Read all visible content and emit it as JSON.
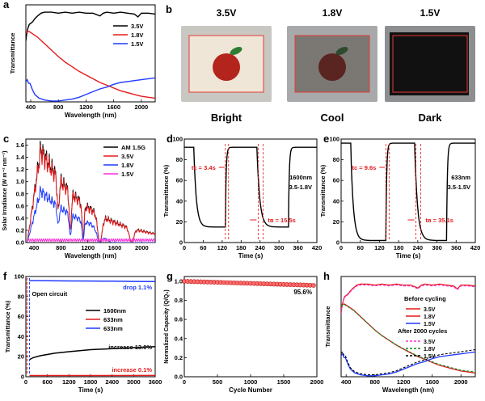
{
  "panels": {
    "a": {
      "letter": "a",
      "type": "line",
      "xlabel": "Wavelength (nm)",
      "ylabel": "Transmittance",
      "xlim": [
        330,
        2200
      ],
      "ylim": [
        0,
        1.05
      ],
      "xticks": [
        400,
        800,
        1200,
        1600,
        2000
      ],
      "series": [
        {
          "name": "3.5V",
          "color": "#000000",
          "points": [
            [
              330,
              0.66
            ],
            [
              340,
              0.73
            ],
            [
              360,
              0.8
            ],
            [
              380,
              0.84
            ],
            [
              400,
              0.85
            ],
            [
              430,
              0.87
            ],
            [
              460,
              0.9
            ],
            [
              500,
              0.93
            ],
            [
              550,
              0.96
            ],
            [
              600,
              0.97
            ],
            [
              700,
              0.97
            ],
            [
              800,
              0.96
            ],
            [
              900,
              0.97
            ],
            [
              1000,
              0.96
            ],
            [
              1100,
              0.97
            ],
            [
              1200,
              0.96
            ],
            [
              1300,
              0.96
            ],
            [
              1400,
              0.93
            ],
            [
              1450,
              0.96
            ],
            [
              1500,
              0.97
            ],
            [
              1600,
              0.96
            ],
            [
              1700,
              0.97
            ],
            [
              1800,
              0.96
            ],
            [
              1900,
              0.95
            ],
            [
              1950,
              0.92
            ],
            [
              2000,
              0.96
            ],
            [
              2100,
              0.96
            ],
            [
              2200,
              0.95
            ]
          ]
        },
        {
          "name": "1.8V",
          "color": "#e31a1c",
          "points": [
            [
              330,
              0.74
            ],
            [
              350,
              0.76
            ],
            [
              380,
              0.76
            ],
            [
              420,
              0.74
            ],
            [
              500,
              0.7
            ],
            [
              600,
              0.63
            ],
            [
              700,
              0.56
            ],
            [
              800,
              0.49
            ],
            [
              900,
              0.43
            ],
            [
              1000,
              0.38
            ],
            [
              1100,
              0.33
            ],
            [
              1200,
              0.29
            ],
            [
              1300,
              0.25
            ],
            [
              1400,
              0.21
            ],
            [
              1500,
              0.18
            ],
            [
              1600,
              0.15
            ],
            [
              1700,
              0.12
            ],
            [
              1800,
              0.1
            ],
            [
              1900,
              0.08
            ],
            [
              2000,
              0.06
            ],
            [
              2100,
              0.05
            ],
            [
              2200,
              0.04
            ]
          ]
        },
        {
          "name": "1.5V",
          "color": "#1f3bff",
          "points": [
            [
              330,
              0.22
            ],
            [
              350,
              0.24
            ],
            [
              370,
              0.2
            ],
            [
              390,
              0.2
            ],
            [
              420,
              0.14
            ],
            [
              460,
              0.08
            ],
            [
              520,
              0.04
            ],
            [
              600,
              0.02
            ],
            [
              700,
              0.01
            ],
            [
              800,
              0.01
            ],
            [
              900,
              0.02
            ],
            [
              1000,
              0.03
            ],
            [
              1100,
              0.05
            ],
            [
              1200,
              0.08
            ],
            [
              1300,
              0.11
            ],
            [
              1400,
              0.14
            ],
            [
              1500,
              0.16
            ],
            [
              1600,
              0.19
            ],
            [
              1700,
              0.21
            ],
            [
              1800,
              0.22
            ],
            [
              1900,
              0.23
            ],
            [
              2000,
              0.24
            ],
            [
              2100,
              0.25
            ],
            [
              2200,
              0.26
            ]
          ]
        }
      ]
    },
    "b": {
      "letter": "b",
      "states": [
        {
          "voltage": "3.5V",
          "caption": "Bright"
        },
        {
          "voltage": "1.8V",
          "caption": "Cool"
        },
        {
          "voltage": "1.5V",
          "caption": "Dark"
        }
      ]
    },
    "c": {
      "letter": "c",
      "type": "line",
      "xlabel": "Wavelength (nm)",
      "ylabel": "Solar Irradiance (W m⁻² nm⁻¹)",
      "xlim": [
        280,
        2200
      ],
      "ylim": [
        0,
        1.7
      ],
      "xticks": [
        400,
        800,
        1200,
        1600,
        2000
      ],
      "yticks": [
        0.0,
        0.2,
        0.4,
        0.6,
        0.8,
        1.0,
        1.2,
        1.4,
        1.6
      ],
      "series": [
        {
          "name": "AM 1.5G",
          "color": "#000000",
          "scale": 1.0
        },
        {
          "name": "3.5V",
          "color": "#e31a1c",
          "scale": 0.96
        },
        {
          "name": "1.8V",
          "color": "#1f3bff",
          "scale": 0.55
        },
        {
          "name": "1.5V",
          "color": "#ff2bd6",
          "scale": 0.06
        }
      ]
    },
    "d": {
      "letter": "d",
      "type": "line",
      "xlabel": "Time (s)",
      "ylabel": "Transmittance (%)",
      "xlim": [
        0,
        420
      ],
      "ylim": [
        0,
        100
      ],
      "xticks": [
        0,
        60,
        120,
        180,
        240,
        300,
        360,
        420
      ],
      "yticks": [
        0,
        20,
        40,
        60,
        80,
        100
      ],
      "top": 92,
      "bottom": 15,
      "times": [
        0,
        30,
        130,
        230,
        330,
        420
      ],
      "note_lines": [
        "1600nm",
        "3.5-1.8V"
      ],
      "t_color": "tᴄ = 3.4s",
      "t_bleach": "tʙ = 15.5s"
    },
    "e": {
      "letter": "e",
      "type": "line",
      "xlabel": "Time (s)",
      "ylabel": "Transmittance (%)",
      "xlim": [
        0,
        420
      ],
      "ylim": [
        0,
        100
      ],
      "xticks": [
        0,
        60,
        120,
        180,
        240,
        300,
        360,
        420
      ],
      "yticks": [
        0,
        20,
        40,
        60,
        80,
        100
      ],
      "top": 96,
      "bottom": 2,
      "times": [
        0,
        30,
        140,
        230,
        330,
        420
      ],
      "note_lines": [
        "633nm",
        "3.5-1.5V"
      ],
      "t_color": "tᴄ = 9.6s",
      "t_bleach": "tʙ = 35.1s"
    },
    "f": {
      "letter": "f",
      "type": "line",
      "xlabel": "Time (s)",
      "ylabel": "Transmittance (%)",
      "xlim": [
        0,
        3600
      ],
      "ylim": [
        0,
        100
      ],
      "xticks": [
        0,
        600,
        1200,
        1800,
        2400,
        3000,
        3600
      ],
      "yticks": [
        0,
        20,
        40,
        60,
        80,
        100
      ],
      "series": [
        {
          "name": "1600nm",
          "color": "#000000",
          "points": [
            [
              100,
              17
            ],
            [
              200,
              19
            ],
            [
              400,
              21
            ],
            [
              800,
              23.5
            ],
            [
              1200,
              25
            ],
            [
              1800,
              27
            ],
            [
              2400,
              28
            ],
            [
              3000,
              29
            ],
            [
              3600,
              30
            ]
          ]
        },
        {
          "name": "633nm",
          "color": "#e31a1c",
          "points": [
            [
              100,
              1.2
            ],
            [
              3600,
              1.3
            ]
          ]
        },
        {
          "name": "633nm",
          "color": "#1f3bff",
          "points": [
            [
              100,
              96
            ],
            [
              600,
              95.8
            ],
            [
              1200,
              95.6
            ],
            [
              1800,
              95.5
            ],
            [
              2400,
              95.3
            ],
            [
              3000,
              95.1
            ],
            [
              3600,
              95
            ]
          ]
        }
      ],
      "open_circuit": "Open circuit",
      "drop": "drop 1.1%",
      "increase_black": "increase 13.0%",
      "increase_red": "increase 0.1%"
    },
    "g": {
      "letter": "g",
      "type": "scatter",
      "xlabel": "Cycle Number",
      "ylabel": "Normalized Capacity (Q/Q₀)",
      "xlim": [
        0,
        2000
      ],
      "ylim": [
        0,
        1.05
      ],
      "xticks": [
        0,
        500,
        1000,
        1500,
        2000
      ],
      "yticks": [
        0.0,
        0.2,
        0.4,
        0.6,
        0.8,
        1.0
      ],
      "start": 1.0,
      "end": 0.956,
      "count": 40,
      "annotation": "95.6%"
    },
    "h": {
      "letter": "h",
      "type": "line",
      "xlabel": "Wavelength (nm)",
      "ylabel": "Transmittance",
      "xlim": [
        330,
        2200
      ],
      "ylim": [
        0,
        1.05
      ],
      "xticks": [
        400,
        800,
        1200,
        1600,
        2000
      ],
      "legend_head1": "Before cycling",
      "legend_head2": "After 2000 cycles",
      "before": [
        {
          "name": "3.5V",
          "color": "#e31a1c"
        },
        {
          "name": "1.8V",
          "color": "#e31a1c"
        },
        {
          "name": "1.5V",
          "color": "#1f3bff"
        }
      ],
      "after": [
        {
          "name": "3.5V",
          "color": "#ff2bd6"
        },
        {
          "name": "1.8V",
          "color": "#0a8a1f"
        },
        {
          "name": "1.5V",
          "color": "#000000"
        }
      ]
    }
  }
}
